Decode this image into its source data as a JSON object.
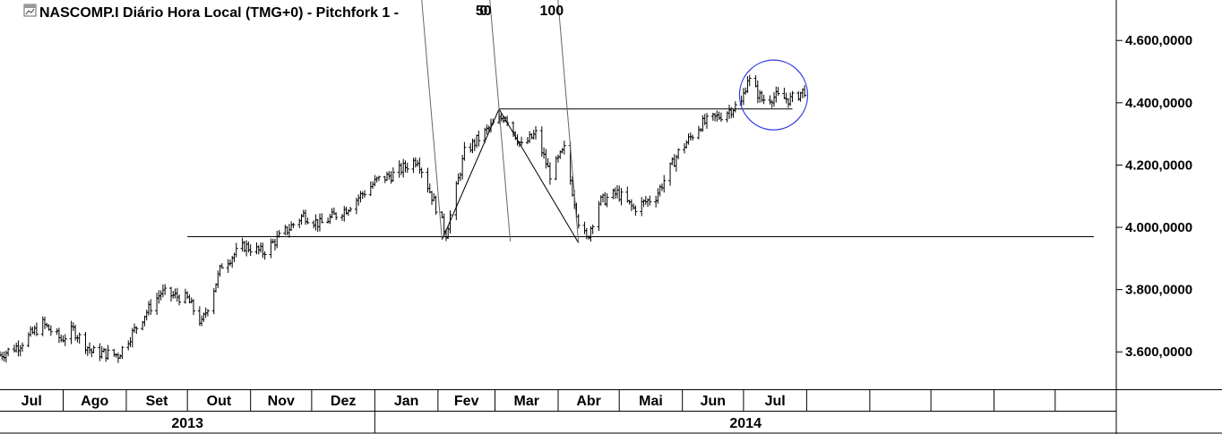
{
  "header": {
    "title": "NASCOMP.I Diário Hora Local (TMG+0)  -  Pitchfork 1 -",
    "icon": "chart-window-icon"
  },
  "chart_data": {
    "type": "ohlc",
    "symbol": "NASCOMP.I",
    "ylim": [
      3480,
      4730
    ],
    "y_ticks": [
      "3.600,0000",
      "3.800,0000",
      "4.000,0000",
      "4.200,0000",
      "4.400,0000",
      "4.600,0000"
    ],
    "y_tick_values": [
      3600,
      3800,
      4000,
      4200,
      4400,
      4600
    ],
    "months": [
      "Jul",
      "Ago",
      "Set",
      "Out",
      "Nov",
      "Dez",
      "Jan",
      "Fev",
      "Mar",
      "Abr",
      "Mai",
      "Jun",
      "Jul"
    ],
    "years": [
      "2013",
      "2014"
    ],
    "x_start": "2013-07-01",
    "x_end": "2014-12-31",
    "price_path": [
      [
        "2013-07-01",
        3590
      ],
      [
        "2013-07-10",
        3620
      ],
      [
        "2013-07-22",
        3690
      ],
      [
        "2013-07-31",
        3640
      ],
      [
        "2013-08-06",
        3670
      ],
      [
        "2013-08-15",
        3600
      ],
      [
        "2013-08-28",
        3590
      ],
      [
        "2013-09-10",
        3720
      ],
      [
        "2013-09-18",
        3790
      ],
      [
        "2013-10-01",
        3770
      ],
      [
        "2013-10-08",
        3690
      ],
      [
        "2013-10-18",
        3880
      ],
      [
        "2013-10-29",
        3940
      ],
      [
        "2013-11-07",
        3920
      ],
      [
        "2013-11-27",
        4040
      ],
      [
        "2013-12-05",
        4010
      ],
      [
        "2013-12-18",
        4060
      ],
      [
        "2014-01-02",
        4150
      ],
      [
        "2014-01-10",
        4170
      ],
      [
        "2014-01-22",
        4220
      ],
      [
        "2014-01-29",
        4100
      ],
      [
        "2014-02-05",
        3980
      ],
      [
        "2014-02-14",
        4240
      ],
      [
        "2014-02-28",
        4330
      ],
      [
        "2014-03-06",
        4360
      ],
      [
        "2014-03-14",
        4260
      ],
      [
        "2014-03-21",
        4300
      ],
      [
        "2014-03-28",
        4170
      ],
      [
        "2014-04-04",
        4250
      ],
      [
        "2014-04-11",
        4020
      ],
      [
        "2014-04-15",
        3960
      ],
      [
        "2014-04-21",
        4080
      ],
      [
        "2014-04-30",
        4110
      ],
      [
        "2014-05-08",
        4060
      ],
      [
        "2014-05-19",
        4100
      ],
      [
        "2014-05-30",
        4240
      ],
      [
        "2014-06-10",
        4330
      ],
      [
        "2014-06-20",
        4360
      ],
      [
        "2014-06-30",
        4400
      ],
      [
        "2014-07-03",
        4480
      ],
      [
        "2014-07-10",
        4410
      ],
      [
        "2014-07-17",
        4420
      ],
      [
        "2014-07-24",
        4410
      ],
      [
        "2014-07-31",
        4440
      ]
    ],
    "horizontal_lines": [
      {
        "from": "2013-10-01",
        "to": "2014-12-20",
        "y": 3970
      },
      {
        "from": "2014-03-03",
        "to": "2014-07-25",
        "y": 4380
      }
    ],
    "pitchfork": {
      "name": "Pitchfork 1",
      "pivots": [
        {
          "date": "2014-02-03",
          "y": 3960
        },
        {
          "date": "2014-03-03",
          "y": 4380
        },
        {
          "date": "2014-04-11",
          "y": 3950
        }
      ],
      "labels": [
        "0",
        "50",
        "100"
      ]
    },
    "annotations": [
      {
        "type": "circle",
        "date": "2014-07-14",
        "y": 4425,
        "color": "#2f38e0"
      }
    ]
  }
}
